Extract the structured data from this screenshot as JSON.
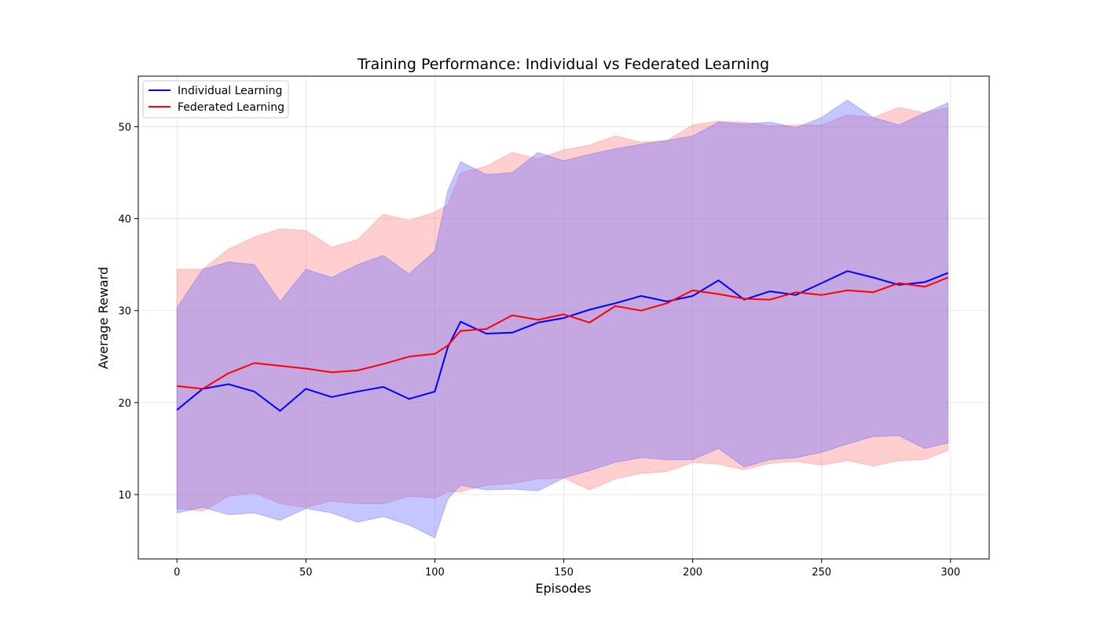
{
  "chart_data": {
    "type": "line",
    "title": "Training Performance: Individual vs Federated Learning",
    "xlabel": "Episodes",
    "ylabel": "Average Reward",
    "xlim": [
      -15,
      315
    ],
    "ylim": [
      3,
      55.5
    ],
    "xticks": [
      0,
      50,
      100,
      150,
      200,
      250,
      300
    ],
    "yticks": [
      10,
      20,
      30,
      40,
      50
    ],
    "grid": true,
    "legend_position": "top-left",
    "series": [
      {
        "name": "Individual Learning",
        "color": "#0000ff",
        "band_color": "#6666ff",
        "x": [
          0,
          10,
          20,
          30,
          40,
          50,
          60,
          70,
          80,
          90,
          100,
          105,
          110,
          120,
          130,
          140,
          150,
          160,
          170,
          180,
          190,
          200,
          210,
          220,
          230,
          240,
          250,
          260,
          270,
          280,
          290,
          299
        ],
        "mean": [
          19.2,
          21.5,
          22.0,
          21.2,
          19.1,
          21.5,
          20.6,
          21.2,
          21.7,
          20.4,
          21.2,
          26.0,
          28.8,
          27.5,
          27.6,
          28.7,
          29.2,
          30.1,
          30.8,
          31.6,
          31.0,
          31.6,
          33.3,
          31.2,
          32.1,
          31.7,
          33.0,
          34.3,
          33.6,
          32.8,
          33.1,
          34.1
        ],
        "upper": [
          30.3,
          34.5,
          35.3,
          35.0,
          31.0,
          34.5,
          33.6,
          35.0,
          36.0,
          34.0,
          36.5,
          43.0,
          46.2,
          44.8,
          45.0,
          47.2,
          46.3,
          47.0,
          47.6,
          48.1,
          48.5,
          49.0,
          50.5,
          50.3,
          50.5,
          49.9,
          51.0,
          52.9,
          51.0,
          50.2,
          51.5,
          52.6
        ],
        "lower": [
          8.0,
          8.6,
          7.8,
          8.0,
          7.2,
          8.5,
          8.0,
          7.0,
          7.6,
          6.7,
          5.3,
          9.5,
          11.0,
          10.5,
          10.6,
          10.4,
          11.8,
          12.6,
          13.5,
          14.0,
          13.8,
          13.8,
          15.0,
          13.0,
          13.8,
          14.0,
          14.6,
          15.5,
          16.3,
          16.4,
          15.0,
          15.6
        ]
      },
      {
        "name": "Federated Learning",
        "color": "#ff0000",
        "band_color": "#ff8080",
        "x": [
          0,
          10,
          20,
          30,
          40,
          50,
          60,
          70,
          80,
          90,
          100,
          105,
          110,
          120,
          130,
          140,
          150,
          160,
          170,
          180,
          190,
          200,
          210,
          220,
          230,
          240,
          250,
          260,
          270,
          280,
          290,
          299
        ],
        "mean": [
          21.8,
          21.5,
          23.2,
          24.3,
          24.0,
          23.7,
          23.3,
          23.5,
          24.2,
          25.0,
          25.3,
          26.2,
          27.8,
          28.0,
          29.5,
          29.0,
          29.6,
          28.7,
          30.5,
          30.0,
          30.8,
          32.2,
          31.8,
          31.3,
          31.2,
          32.0,
          31.7,
          32.2,
          32.0,
          33.0,
          32.6,
          33.6
        ],
        "upper": [
          34.5,
          34.5,
          36.7,
          38.0,
          38.9,
          38.7,
          36.9,
          37.7,
          40.5,
          39.8,
          40.7,
          41.5,
          45.0,
          45.7,
          47.2,
          46.5,
          47.5,
          48.0,
          49.0,
          48.3,
          48.5,
          50.2,
          50.6,
          50.5,
          50.1,
          50.2,
          50.2,
          51.3,
          51.0,
          52.1,
          51.5,
          52.1
        ],
        "lower": [
          8.5,
          8.2,
          9.8,
          10.2,
          9.0,
          8.6,
          9.3,
          9.0,
          9.0,
          9.8,
          9.6,
          10.3,
          10.3,
          11.0,
          11.2,
          11.7,
          11.8,
          10.5,
          11.7,
          12.3,
          12.5,
          13.5,
          13.3,
          12.7,
          13.4,
          13.6,
          13.2,
          13.7,
          13.1,
          13.7,
          13.8,
          14.8
        ]
      }
    ]
  }
}
